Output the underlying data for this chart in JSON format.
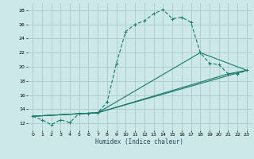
{
  "xlabel": "Humidex (Indice chaleur)",
  "bg_color": "#cce8e8",
  "grid_color": "#aacaca",
  "line_color": "#1a7a6a",
  "xlim": [
    -0.5,
    23.5
  ],
  "ylim": [
    11,
    29
  ],
  "xticks": [
    0,
    1,
    2,
    3,
    4,
    5,
    6,
    7,
    8,
    9,
    10,
    11,
    12,
    13,
    14,
    15,
    16,
    17,
    18,
    19,
    20,
    21,
    22,
    23
  ],
  "yticks": [
    12,
    14,
    16,
    18,
    20,
    22,
    24,
    26,
    28
  ],
  "series1_x": [
    0,
    1,
    2,
    3,
    4,
    5,
    6,
    7,
    8,
    9,
    10,
    11,
    12,
    13,
    14,
    15,
    16,
    17,
    18,
    19,
    20,
    21,
    22,
    23
  ],
  "series1_y": [
    13.0,
    12.5,
    11.8,
    12.5,
    12.1,
    13.4,
    13.4,
    13.5,
    15.0,
    20.5,
    25.0,
    26.0,
    26.5,
    27.5,
    28.1,
    26.8,
    27.0,
    26.3,
    22.0,
    20.5,
    20.3,
    19.0,
    19.0,
    19.5
  ],
  "series2_x": [
    0,
    7,
    18,
    23
  ],
  "series2_y": [
    13.0,
    13.5,
    22.0,
    19.5
  ],
  "series3_x": [
    0,
    7,
    23
  ],
  "series3_y": [
    13.0,
    13.5,
    19.5
  ],
  "series4_x": [
    0,
    7,
    21,
    23
  ],
  "series4_y": [
    13.0,
    13.5,
    19.0,
    19.5
  ],
  "xlabel_fontsize": 5.5,
  "tick_fontsize": 4.5,
  "linewidth": 0.8,
  "marker_size": 2.5
}
